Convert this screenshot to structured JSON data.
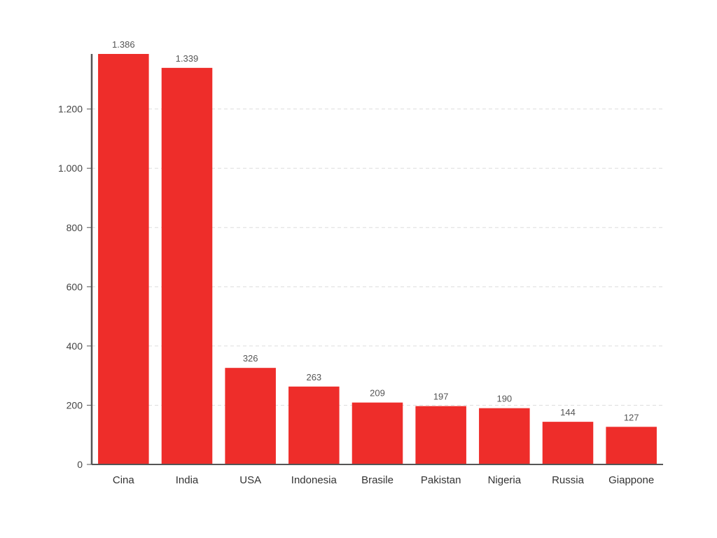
{
  "chart_data": {
    "type": "bar",
    "categories": [
      "Cina",
      "India",
      "USA",
      "Indonesia",
      "Brasile",
      "Pakistan",
      "Nigeria",
      "Russia",
      "Giappone"
    ],
    "values": [
      1386,
      1339,
      326,
      263,
      209,
      197,
      190,
      144,
      127
    ],
    "data_labels": [
      "1.386",
      "1.339",
      "326",
      "263",
      "209",
      "197",
      "190",
      "144",
      "127"
    ],
    "y_ticks": [
      0,
      200,
      400,
      600,
      800,
      1000,
      1200
    ],
    "y_tick_labels": [
      "0",
      "200",
      "400",
      "600",
      "800",
      "1.000",
      "1.200"
    ],
    "ylim": [
      0,
      1386
    ],
    "grid": true,
    "bar_color": "#ee2d2a",
    "axis_color": "#555555",
    "grid_color": "#dddddd"
  }
}
